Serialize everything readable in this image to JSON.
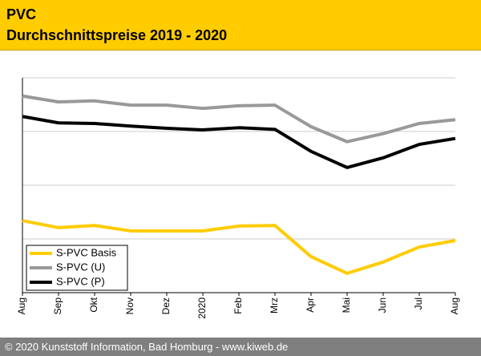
{
  "header": {
    "title": "PVC",
    "subtitle": "Durchschnittspreise 2019 - 2020"
  },
  "chart_data": {
    "type": "line",
    "categories": [
      "Aug",
      "Sep",
      "Okt",
      "Nov",
      "Dez",
      "2020",
      "Feb",
      "Mrz",
      "Apr",
      "Mai",
      "Jun",
      "Jul",
      "Aug"
    ],
    "series": [
      {
        "name": "S-PVC Basis",
        "color": "#ffcc00",
        "values": [
          1.34,
          1.21,
          1.25,
          1.15,
          1.15,
          1.15,
          1.24,
          1.25,
          0.67,
          0.36,
          0.57,
          0.85,
          0.97
        ]
      },
      {
        "name": "S-PVC (U)",
        "color": "#999999",
        "values": [
          3.66,
          3.55,
          3.57,
          3.49,
          3.49,
          3.43,
          3.48,
          3.49,
          3.09,
          2.81,
          2.96,
          3.15,
          3.22
        ]
      },
      {
        "name": "S-PVC (P)",
        "color": "#000000",
        "values": [
          3.28,
          3.16,
          3.15,
          3.1,
          3.06,
          3.03,
          3.07,
          3.04,
          2.63,
          2.33,
          2.51,
          2.76,
          2.87
        ]
      }
    ],
    "ylim": [
      0,
      4
    ],
    "yticks": [
      1,
      2,
      3,
      4
    ],
    "grid": true,
    "legend": "bottom-left"
  },
  "footer": "© 2020 Kunststoff Information, Bad Homburg - www.kiweb.de"
}
